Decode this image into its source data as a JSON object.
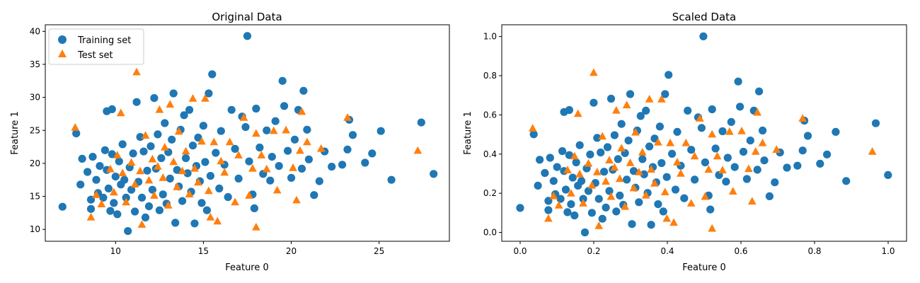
{
  "chart_data": [
    {
      "type": "scatter",
      "title": "Original Data",
      "xlabel": "Feature 0",
      "ylabel": "Feature 1",
      "xlim": [
        6.0,
        29.0
      ],
      "ylim": [
        8.2,
        41.0
      ],
      "xticks": [
        "10",
        "15",
        "20",
        "25"
      ],
      "yticks": [
        "10",
        "15",
        "20",
        "25",
        "30",
        "35",
        "40"
      ],
      "legend": {
        "position": "top-left",
        "entries": [
          "Training set",
          "Test set"
        ]
      },
      "series": [
        {
          "name": "Training set",
          "marker": "circle",
          "color": "#1f77b4",
          "points": [
            [
              6.98,
              13.43
            ],
            [
              7.76,
              24.54
            ],
            [
              8.0,
              16.8
            ],
            [
              8.1,
              20.7
            ],
            [
              8.4,
              18.7
            ],
            [
              8.6,
              14.5
            ],
            [
              8.6,
              13.1
            ],
            [
              8.7,
              21.0
            ],
            [
              8.9,
              17.5
            ],
            [
              9.0,
              15.5
            ],
            [
              9.1,
              19.6
            ],
            [
              9.3,
              14.8
            ],
            [
              9.4,
              22.0
            ],
            [
              9.5,
              27.9
            ],
            [
              9.5,
              19.0
            ],
            [
              9.6,
              16.2
            ],
            [
              9.7,
              12.8
            ],
            [
              9.8,
              21.4
            ],
            [
              9.8,
              28.2
            ],
            [
              9.9,
              14.0
            ],
            [
              10.0,
              18.0
            ],
            [
              10.1,
              12.3
            ],
            [
              10.2,
              20.3
            ],
            [
              10.3,
              16.8
            ],
            [
              10.4,
              22.9
            ],
            [
              10.5,
              17.5
            ],
            [
              10.6,
              14.8
            ],
            [
              10.7,
              9.74
            ],
            [
              10.8,
              19.4
            ],
            [
              10.9,
              16.0
            ],
            [
              11.0,
              21.5
            ],
            [
              11.1,
              12.7
            ],
            [
              11.2,
              29.3
            ],
            [
              11.3,
              17.2
            ],
            [
              11.4,
              24.0
            ],
            [
              11.5,
              14.8
            ],
            [
              11.6,
              21.8
            ],
            [
              11.7,
              11.8
            ],
            [
              11.8,
              18.9
            ],
            [
              11.9,
              13.5
            ],
            [
              12.0,
              22.6
            ],
            [
              12.1,
              16.0
            ],
            [
              12.2,
              29.9
            ],
            [
              12.3,
              19.2
            ],
            [
              12.4,
              24.4
            ],
            [
              12.5,
              12.9
            ],
            [
              12.6,
              20.8
            ],
            [
              12.7,
              15.3
            ],
            [
              12.8,
              26.1
            ],
            [
              12.9,
              13.9
            ],
            [
              13.0,
              21.7
            ],
            [
              13.1,
              17.7
            ],
            [
              13.2,
              23.6
            ],
            [
              13.3,
              30.6
            ],
            [
              13.4,
              11.0
            ],
            [
              13.5,
              19.0
            ],
            [
              13.6,
              16.5
            ],
            [
              13.7,
              25.1
            ],
            [
              13.8,
              14.3
            ],
            [
              13.9,
              27.3
            ],
            [
              14.0,
              20.8
            ],
            [
              14.1,
              18.5
            ],
            [
              14.2,
              28.1
            ],
            [
              14.3,
              15.7
            ],
            [
              14.4,
              22.7
            ],
            [
              14.5,
              10.9
            ],
            [
              14.6,
              19.6
            ],
            [
              14.7,
              23.9
            ],
            [
              14.8,
              17.3
            ],
            [
              14.9,
              14.0
            ],
            [
              15.0,
              25.7
            ],
            [
              15.1,
              20.2
            ],
            [
              15.2,
              12.9
            ],
            [
              15.3,
              30.6
            ],
            [
              15.4,
              18.1
            ],
            [
              15.5,
              33.5
            ],
            [
              15.7,
              21.6
            ],
            [
              15.9,
              16.2
            ],
            [
              16.0,
              24.9
            ],
            [
              16.2,
              19.8
            ],
            [
              16.4,
              14.9
            ],
            [
              16.6,
              28.1
            ],
            [
              16.8,
              22.2
            ],
            [
              17.0,
              17.7
            ],
            [
              17.2,
              27.1
            ],
            [
              17.4,
              25.5
            ],
            [
              17.5,
              39.3
            ],
            [
              17.6,
              20.3
            ],
            [
              17.8,
              15.3
            ],
            [
              17.9,
              13.2
            ],
            [
              18.0,
              28.3
            ],
            [
              18.2,
              22.4
            ],
            [
              18.4,
              18.4
            ],
            [
              18.6,
              25.0
            ],
            [
              18.8,
              17.4
            ],
            [
              18.9,
              21.0
            ],
            [
              19.1,
              26.4
            ],
            [
              19.3,
              19.6
            ],
            [
              19.5,
              32.5
            ],
            [
              19.6,
              28.7
            ],
            [
              19.8,
              21.9
            ],
            [
              20.0,
              17.8
            ],
            [
              20.2,
              23.6
            ],
            [
              20.4,
              28.1
            ],
            [
              20.6,
              19.2
            ],
            [
              20.7,
              31.0
            ],
            [
              20.9,
              25.1
            ],
            [
              21.0,
              20.6
            ],
            [
              21.3,
              15.2
            ],
            [
              21.6,
              17.3
            ],
            [
              21.9,
              21.8
            ],
            [
              22.3,
              19.5
            ],
            [
              22.9,
              19.8
            ],
            [
              23.2,
              22.1
            ],
            [
              23.5,
              24.3
            ],
            [
              23.3,
              26.6
            ],
            [
              24.2,
              20.1
            ],
            [
              24.6,
              21.5
            ],
            [
              25.1,
              24.9
            ],
            [
              25.7,
              17.5
            ],
            [
              27.4,
              26.2
            ],
            [
              28.1,
              18.4
            ]
          ]
        },
        {
          "name": "Test set",
          "marker": "triangle",
          "color": "#ff7f0e",
          "points": [
            [
              7.7,
              25.4
            ],
            [
              8.6,
              11.8
            ],
            [
              8.9,
              15.2
            ],
            [
              9.2,
              13.8
            ],
            [
              9.7,
              19.1
            ],
            [
              9.9,
              15.6
            ],
            [
              10.1,
              21.2
            ],
            [
              10.3,
              27.6
            ],
            [
              10.4,
              18.5
            ],
            [
              10.6,
              14.1
            ],
            [
              10.9,
              20.1
            ],
            [
              11.1,
              16.8
            ],
            [
              11.2,
              33.8
            ],
            [
              11.4,
              18.8
            ],
            [
              11.5,
              10.7
            ],
            [
              11.7,
              24.2
            ],
            [
              11.9,
              17.4
            ],
            [
              12.1,
              20.6
            ],
            [
              12.2,
              15.1
            ],
            [
              12.4,
              19.5
            ],
            [
              12.5,
              28.1
            ],
            [
              12.7,
              17.8
            ],
            [
              12.8,
              22.4
            ],
            [
              13.0,
              13.6
            ],
            [
              13.1,
              28.9
            ],
            [
              13.3,
              20.2
            ],
            [
              13.5,
              16.4
            ],
            [
              13.6,
              24.8
            ],
            [
              13.8,
              18.8
            ],
            [
              14.0,
              21.8
            ],
            [
              14.2,
              15.3
            ],
            [
              14.4,
              29.8
            ],
            [
              14.5,
              19.2
            ],
            [
              14.7,
              17.1
            ],
            [
              14.9,
              23.3
            ],
            [
              15.1,
              29.8
            ],
            [
              15.3,
              15.8
            ],
            [
              15.4,
              11.8
            ],
            [
              15.6,
              23.2
            ],
            [
              15.8,
              11.2
            ],
            [
              16.0,
              20.3
            ],
            [
              16.2,
              18.6
            ],
            [
              16.5,
              23.2
            ],
            [
              16.8,
              14.1
            ],
            [
              17.0,
              21.2
            ],
            [
              17.3,
              26.9
            ],
            [
              17.6,
              15.1
            ],
            [
              17.8,
              19.2
            ],
            [
              18.0,
              10.3
            ],
            [
              18.0,
              24.5
            ],
            [
              18.3,
              21.2
            ],
            [
              18.6,
              19.1
            ],
            [
              19.0,
              24.9
            ],
            [
              19.2,
              15.9
            ],
            [
              19.7,
              25.0
            ],
            [
              20.1,
              19.3
            ],
            [
              20.3,
              14.4
            ],
            [
              20.5,
              21.9
            ],
            [
              20.6,
              27.8
            ],
            [
              20.9,
              23.2
            ],
            [
              21.7,
              22.2
            ],
            [
              23.2,
              26.9
            ],
            [
              27.2,
              21.9
            ]
          ]
        }
      ]
    },
    {
      "type": "scatter",
      "title": "Scaled Data",
      "xlabel": "Feature 0",
      "ylabel": "Feature 1",
      "xlim": [
        -0.05,
        1.05
      ],
      "ylim": [
        -0.045,
        1.06
      ],
      "xticks": [
        "0.0",
        "0.2",
        "0.4",
        "0.6",
        "0.8",
        "1.0"
      ],
      "yticks": [
        "0.0",
        "0.2",
        "0.4",
        "0.6",
        "0.8",
        "1.0"
      ],
      "series": [
        {
          "name": "Training set",
          "marker": "circle",
          "color": "#1f77b4",
          "x_scale": [
            6.98,
            28.11
          ],
          "y_scale": [
            9.74,
            39.28
          ]
        },
        {
          "name": "Test set",
          "marker": "triangle",
          "color": "#ff7f0e",
          "x_scale": [
            6.98,
            28.11
          ],
          "y_scale": [
            9.74,
            39.28
          ]
        }
      ]
    }
  ]
}
